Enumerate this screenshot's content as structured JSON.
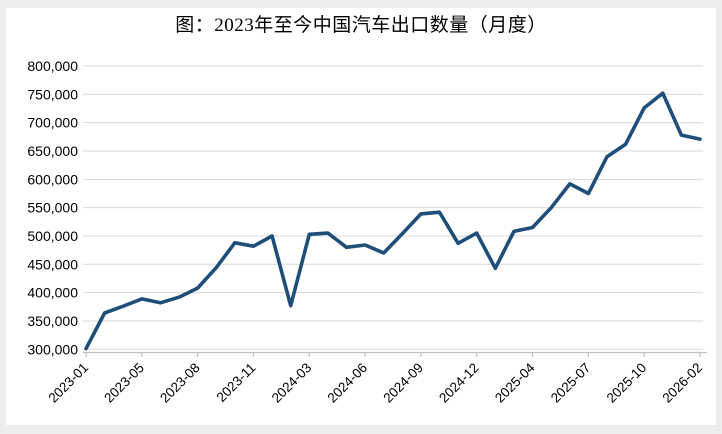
{
  "title": "图：2023年至今中国汽车出口数量（月度）",
  "chart_data": {
    "type": "line",
    "title": "图：2023年至今中国汽车出口数量（月度）",
    "xlabel": "",
    "ylabel": "",
    "x": [
      "2023-01",
      "2023-03",
      "2023-04",
      "2023-05",
      "2023-06",
      "2023-07",
      "2023-08",
      "2023-09",
      "2023-10",
      "2023-11",
      "2023-12",
      "2024-02",
      "2024-03",
      "2024-04",
      "2024-05",
      "2024-06",
      "2024-07",
      "2024-08",
      "2024-09",
      "2024-10",
      "2024-11",
      "2024-12",
      "2025-02",
      "2025-03",
      "2025-04",
      "2025-05",
      "2025-06",
      "2025-07",
      "2025-08",
      "2025-09",
      "2025-10",
      "2025-11",
      "2025-12",
      "2026-02"
    ],
    "values": [
      301000,
      364000,
      376000,
      389000,
      382000,
      392000,
      408000,
      444000,
      488000,
      482000,
      500000,
      377000,
      503000,
      505000,
      480000,
      484000,
      470000,
      504000,
      539000,
      542000,
      487000,
      505000,
      443000,
      508000,
      515000,
      550000,
      592000,
      575000,
      640000,
      662000,
      726000,
      752000,
      678000,
      671000
    ],
    "x_tick_labels": [
      "2023-01",
      "2023-05",
      "2023-08",
      "2023-11",
      "2024-03",
      "2024-06",
      "2024-09",
      "2024-12",
      "2025-04",
      "2025-07",
      "2025-10",
      "2026-02"
    ],
    "label_interval": 3,
    "ylim": [
      300000,
      800000
    ],
    "ytick_step": 50000,
    "y_tick_labels": [
      "300,000",
      "350,000",
      "400,000",
      "450,000",
      "500,000",
      "550,000",
      "600,000",
      "650,000",
      "700,000",
      "750,000",
      "800,000"
    ],
    "grid": "on",
    "legend_position": "none",
    "line_color": "#1f4e79",
    "grid_color": "#d9d9d9",
    "axis_color": "#bfbfbf",
    "label_color": "#000000"
  }
}
